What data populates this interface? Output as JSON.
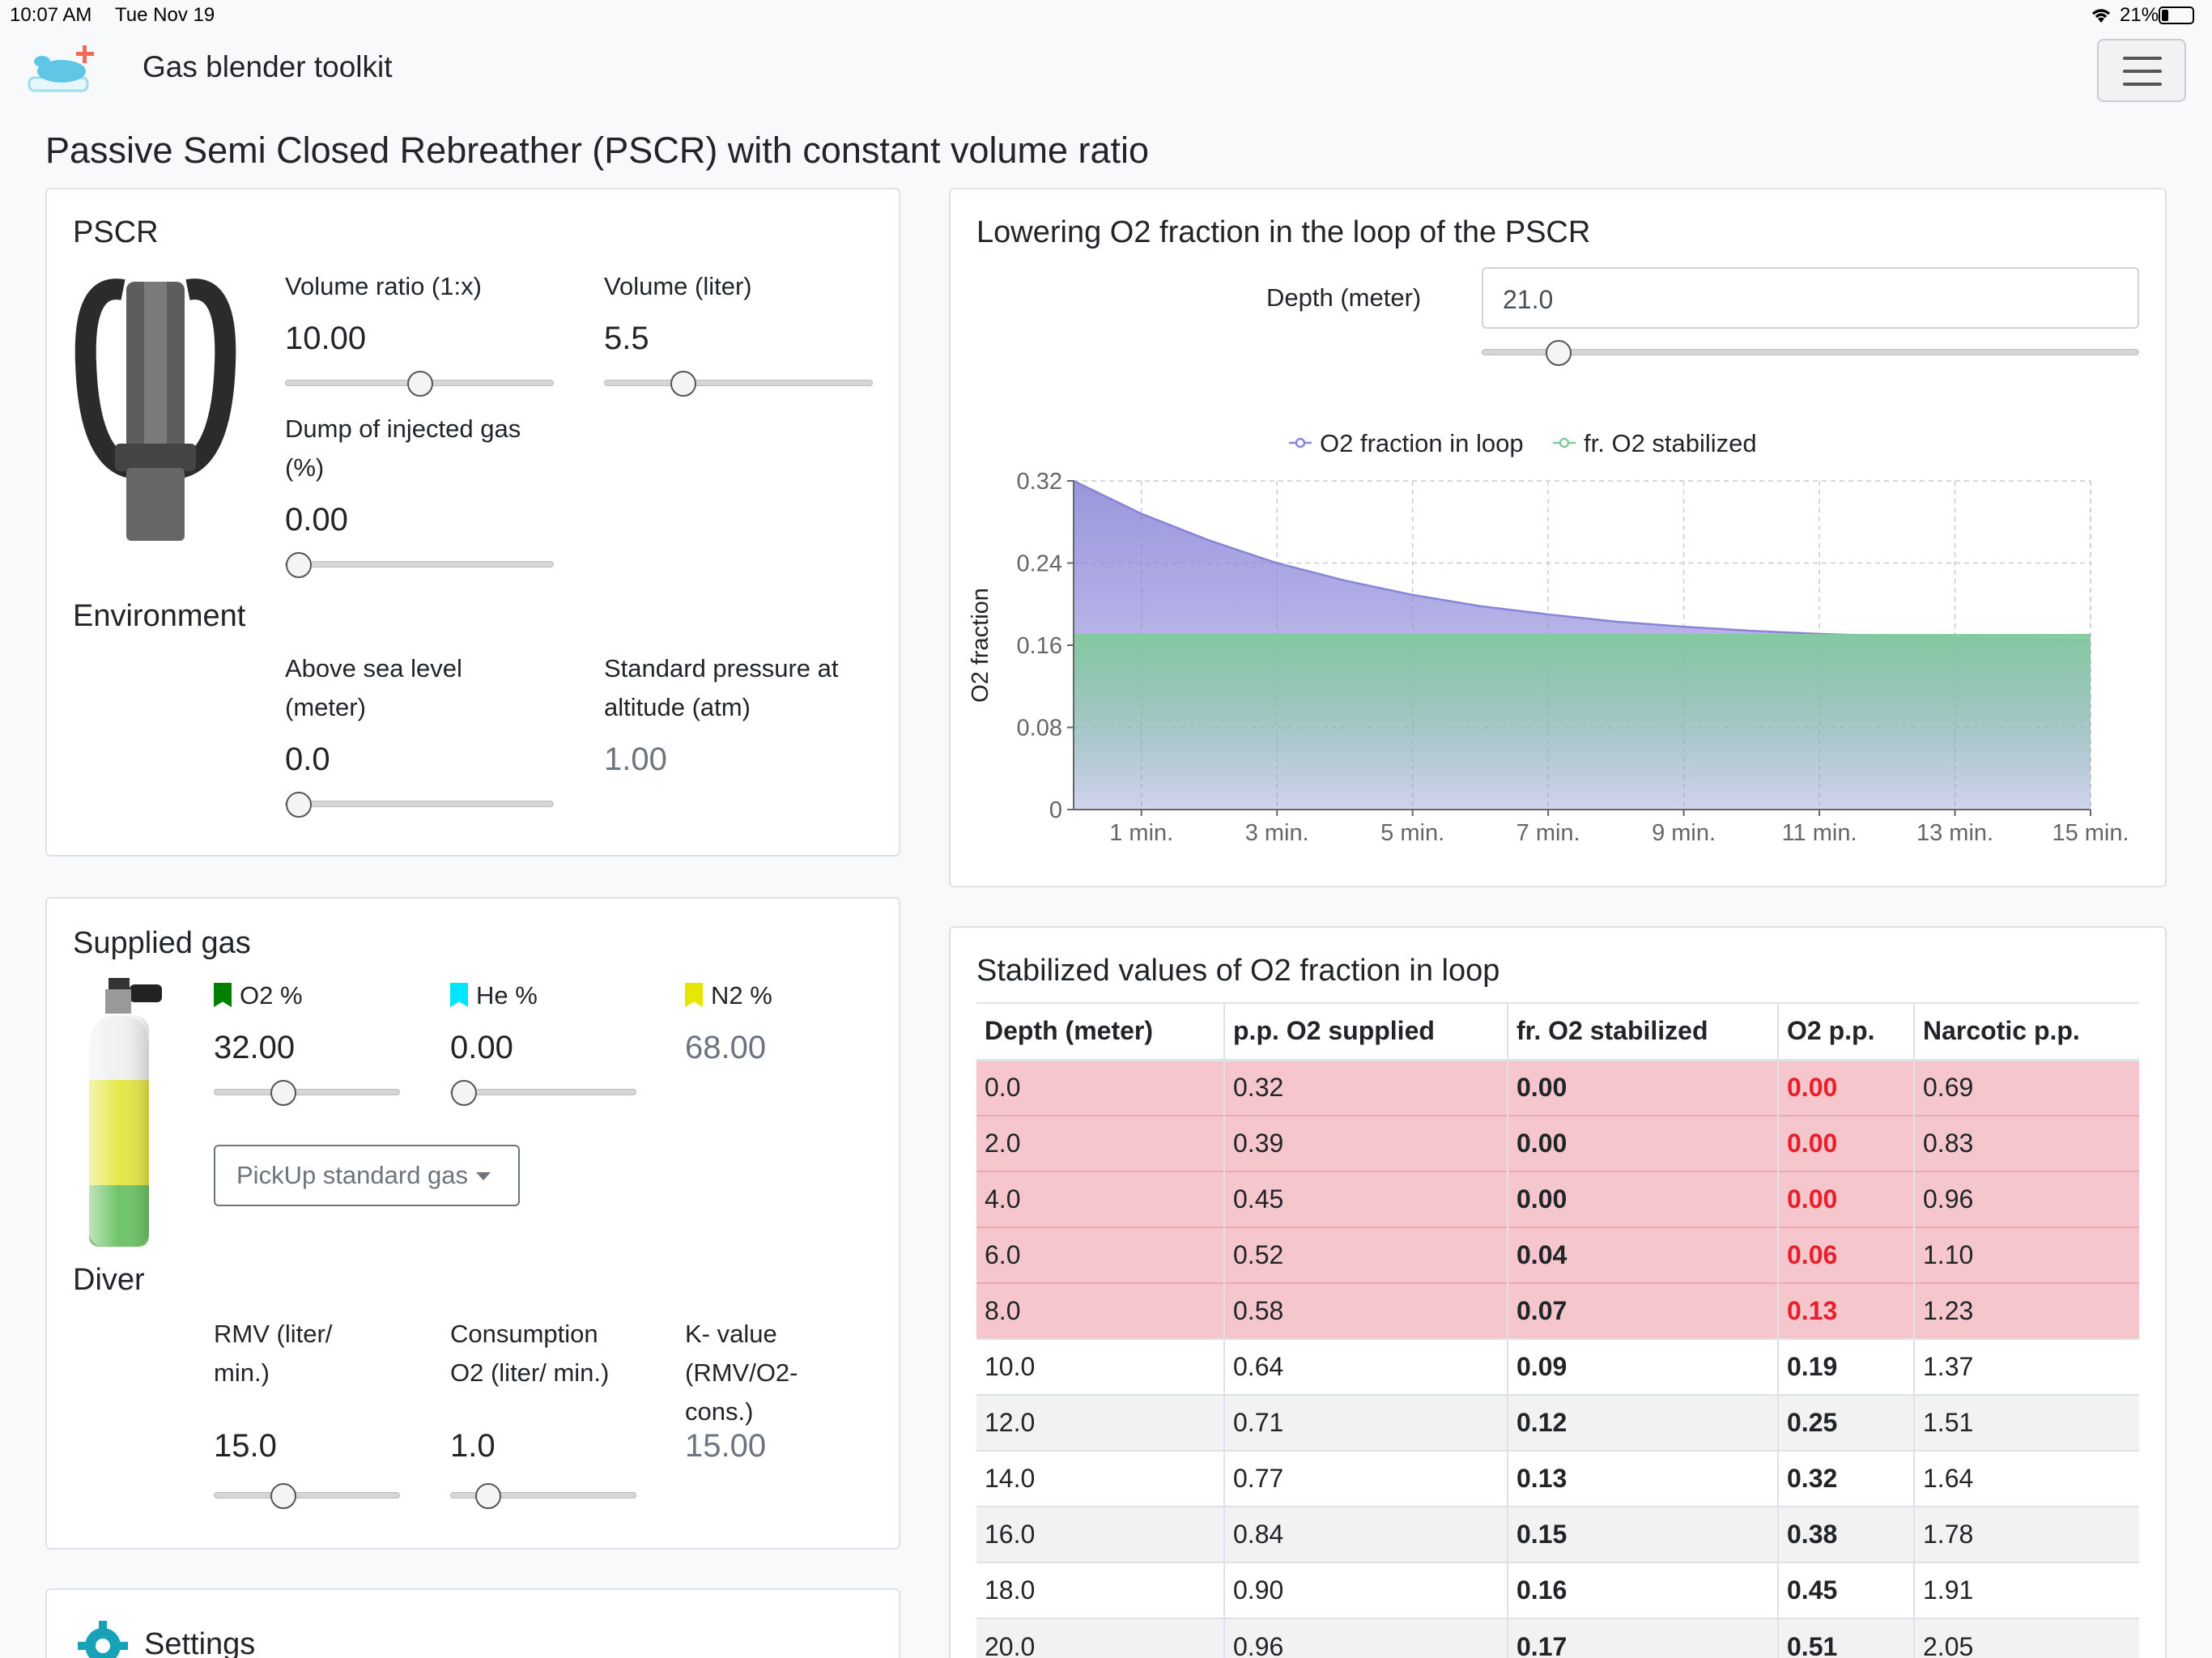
{
  "status_bar": {
    "time": "10:07 AM",
    "date": "Tue Nov 19",
    "battery": "21%"
  },
  "app": {
    "title": "Gas blender toolkit"
  },
  "page_title": "Passive Semi Closed Rebreather (PSCR) with constant volume ratio",
  "pscr": {
    "heading": "PSCR",
    "volume_ratio": {
      "label": "Volume ratio (1:x)",
      "value": "10.00",
      "slider_fraction": 0.5
    },
    "volume": {
      "label": "Volume (liter)",
      "value": "5.5",
      "slider_fraction": 0.27
    },
    "dump": {
      "label_line1": "Dump of injected gas",
      "label_line2": "(%)",
      "value": "0.00",
      "slider_fraction": 0.0
    }
  },
  "environment": {
    "heading": "Environment",
    "above_sea": {
      "label_line1": "Above sea level",
      "label_line2": "(meter)",
      "value": "0.0",
      "slider_fraction": 0.0
    },
    "pressure": {
      "label_line1": "Standard pressure at",
      "label_line2": "altitude (atm)",
      "value": "1.00"
    }
  },
  "supplied_gas": {
    "heading": "Supplied gas",
    "o2": {
      "label": "O2 %",
      "value": "32.00",
      "slider_fraction": 0.35,
      "color": "#008000"
    },
    "he": {
      "label": "He %",
      "value": "0.00",
      "slider_fraction": 0.0,
      "color": "#00e5ff"
    },
    "n2": {
      "label": "N2 %",
      "value": "68.00",
      "color": "#e6e600"
    },
    "pickup_label": "PickUp standard gas"
  },
  "diver": {
    "heading": "Diver",
    "rmv": {
      "label_line1": "RMV (liter/",
      "label_line2": "min.)",
      "value": "15.0",
      "slider_fraction": 0.35
    },
    "consumption": {
      "label_line1": "Consumption",
      "label_line2": "O2 (liter/ min.)",
      "value": "1.0",
      "slider_fraction": 0.15
    },
    "k_value": {
      "label_line1": "K- value",
      "label_line2": "(RMV/O2-",
      "label_line3": "cons.)",
      "value": "15.00"
    }
  },
  "settings": {
    "label": "Settings"
  },
  "chart_card": {
    "heading": "Lowering O2 fraction in the loop of the PSCR",
    "depth_label": "Depth (meter)",
    "depth_value": "21.0",
    "depth_slider_fraction": 0.1
  },
  "chart_data": {
    "type": "area",
    "ylabel": "O2 fraction",
    "xlabel": "",
    "ylim": [
      0,
      0.32
    ],
    "yticks": [
      "0.32",
      "0.24",
      "0.16",
      "0.08",
      "0"
    ],
    "xticks": [
      "1 min.",
      "3 min.",
      "5 min.",
      "7 min.",
      "9 min.",
      "11 min.",
      "13 min.",
      "15 min."
    ],
    "legend_position": "top",
    "grid": true,
    "x": [
      0,
      1,
      2,
      3,
      4,
      5,
      6,
      7,
      8,
      9,
      10,
      11,
      12,
      13,
      14,
      15
    ],
    "series": [
      {
        "name": "O2 fraction in loop",
        "color": "#8884d8",
        "values": [
          0.32,
          0.288,
          0.262,
          0.24,
          0.223,
          0.209,
          0.198,
          0.19,
          0.183,
          0.178,
          0.174,
          0.171,
          0.169,
          0.167,
          0.166,
          0.165
        ]
      },
      {
        "name": "fr. O2 stabilized",
        "color": "#82ca9d",
        "values": [
          0.17,
          0.17,
          0.17,
          0.17,
          0.17,
          0.17,
          0.17,
          0.17,
          0.17,
          0.17,
          0.17,
          0.17,
          0.17,
          0.17,
          0.17,
          0.17
        ]
      }
    ]
  },
  "table_card": {
    "heading": "Stabilized values of O2 fraction in loop",
    "columns": [
      "Depth (meter)",
      "p.p. O2 supplied",
      "fr. O2 stabilized",
      "O2 p.p.",
      "Narcotic p.p."
    ],
    "rows": [
      {
        "cells": [
          "0.0",
          "0.32",
          "0.00",
          "0.00",
          "0.69"
        ],
        "danger": true
      },
      {
        "cells": [
          "2.0",
          "0.39",
          "0.00",
          "0.00",
          "0.83"
        ],
        "danger": true
      },
      {
        "cells": [
          "4.0",
          "0.45",
          "0.00",
          "0.00",
          "0.96"
        ],
        "danger": true
      },
      {
        "cells": [
          "6.0",
          "0.52",
          "0.04",
          "0.06",
          "1.10"
        ],
        "danger": true
      },
      {
        "cells": [
          "8.0",
          "0.58",
          "0.07",
          "0.13",
          "1.23"
        ],
        "danger": true
      },
      {
        "cells": [
          "10.0",
          "0.64",
          "0.09",
          "0.19",
          "1.37"
        ],
        "danger": false
      },
      {
        "cells": [
          "12.0",
          "0.71",
          "0.12",
          "0.25",
          "1.51"
        ],
        "danger": false
      },
      {
        "cells": [
          "14.0",
          "0.77",
          "0.13",
          "0.32",
          "1.64"
        ],
        "danger": false
      },
      {
        "cells": [
          "16.0",
          "0.84",
          "0.15",
          "0.38",
          "1.78"
        ],
        "danger": false
      },
      {
        "cells": [
          "18.0",
          "0.90",
          "0.16",
          "0.45",
          "1.91"
        ],
        "danger": false
      },
      {
        "cells": [
          "20.0",
          "0.96",
          "0.17",
          "0.51",
          "2.05"
        ],
        "danger": false
      }
    ]
  }
}
